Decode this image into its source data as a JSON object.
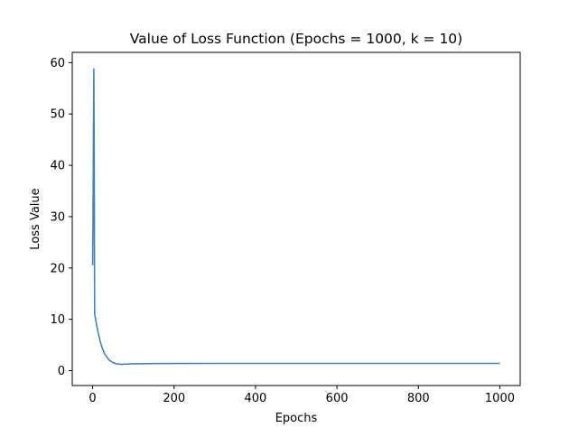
{
  "chart_data": {
    "type": "line",
    "title": "Value of Loss Function (Epochs = 1000, k = 10)",
    "xlabel": "Epochs",
    "ylabel": "Loss Value",
    "xlim": [
      -50,
      1050
    ],
    "ylim": [
      -2.9,
      62
    ],
    "xticks": [
      0,
      200,
      400,
      600,
      800,
      1000
    ],
    "yticks": [
      0,
      10,
      20,
      30,
      40,
      50,
      60
    ],
    "grid": false,
    "legend": "none",
    "series": [
      {
        "color": "#4682b4",
        "x": [
          0,
          1,
          2,
          3,
          4,
          5,
          6,
          7,
          10,
          15,
          20,
          25,
          30,
          40,
          50,
          60,
          70,
          80,
          90,
          100,
          120,
          150,
          200,
          300,
          400,
          500,
          600,
          700,
          800,
          900,
          1000
        ],
        "y": [
          20.5,
          30,
          45,
          58.8,
          40,
          11,
          10.6,
          10.2,
          8.8,
          6.9,
          5.3,
          4.1,
          3.2,
          2.1,
          1.55,
          1.3,
          1.25,
          1.27,
          1.3,
          1.33,
          1.36,
          1.38,
          1.4,
          1.41,
          1.41,
          1.41,
          1.41,
          1.41,
          1.41,
          1.41,
          1.41
        ]
      }
    ]
  }
}
